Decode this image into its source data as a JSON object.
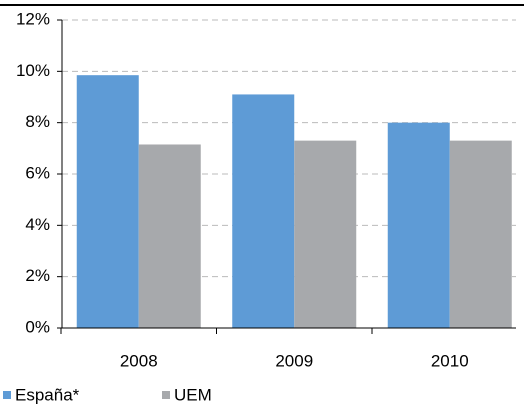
{
  "chart_data": {
    "type": "bar",
    "categories": [
      "2008",
      "2009",
      "2010"
    ],
    "series": [
      {
        "name": "España*",
        "color": "#5e9bd6",
        "values": [
          9.85,
          9.1,
          8.0
        ]
      },
      {
        "name": "UEM",
        "color": "#a7a9ac",
        "values": [
          7.15,
          7.3,
          7.3
        ]
      }
    ],
    "ylim": [
      0,
      12
    ],
    "yticks": [
      {
        "value": 0,
        "label": "0%"
      },
      {
        "value": 2,
        "label": "2%"
      },
      {
        "value": 4,
        "label": "4%"
      },
      {
        "value": 6,
        "label": "6%"
      },
      {
        "value": 8,
        "label": "8%"
      },
      {
        "value": 10,
        "label": "10%"
      },
      {
        "value": 12,
        "label": "12%"
      }
    ],
    "grid": true
  }
}
